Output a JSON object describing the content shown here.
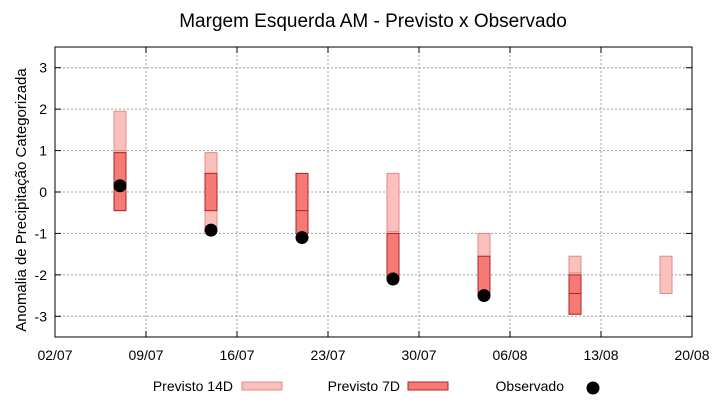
{
  "chart_data": {
    "type": "range-bar",
    "title": "Margem Esquerda AM - Previsto x Observado",
    "xlabel": "",
    "ylabel": "Anomalia de Precipitação Categorizada",
    "xlim": [
      "02/07",
      "20/08"
    ],
    "ylim": [
      -3.5,
      3.5
    ],
    "x_ticks": [
      "02/07",
      "09/07",
      "16/07",
      "23/07",
      "30/07",
      "06/08",
      "13/08",
      "20/08"
    ],
    "y_ticks": [
      3,
      2,
      1,
      0,
      -1,
      -2,
      -3
    ],
    "grid": true,
    "legend_position": "bottom",
    "series": [
      {
        "name": "Previsto 14D",
        "color": "#f9c0bc",
        "edge_color": "#e08a86",
        "data": [
          {
            "x": "07/07",
            "low": -0.45,
            "mid": 1.0,
            "high": 1.95
          },
          {
            "x": "14/07",
            "low": -0.85,
            "mid": 0.95,
            "high": 0.95
          },
          {
            "x": "21/07",
            "low": -0.45,
            "mid": -0.45,
            "high": -0.45
          },
          {
            "x": "28/07",
            "low": -1.0,
            "mid": -0.95,
            "high": 0.45
          },
          {
            "x": "04/08",
            "low": -2.45,
            "mid": -2.0,
            "high": -1.0
          },
          {
            "x": "11/08",
            "low": -2.95,
            "mid": -1.95,
            "high": -1.55
          },
          {
            "x": "18/08",
            "low": -2.45,
            "mid": -2.45,
            "high": -1.55
          }
        ]
      },
      {
        "name": "Previsto 7D",
        "color": "#f57a74",
        "edge_color": "#b0202a",
        "data": [
          {
            "x": "07/07",
            "low": -0.45,
            "mid": 0.15,
            "high": 0.95
          },
          {
            "x": "14/07",
            "low": -0.45,
            "mid": -0.45,
            "high": 0.45
          },
          {
            "x": "21/07",
            "low": -1.0,
            "mid": -0.45,
            "high": 0.45
          },
          {
            "x": "28/07",
            "low": -2.1,
            "mid": -2.1,
            "high": -1.0
          },
          {
            "x": "04/08",
            "low": -2.45,
            "mid": -2.45,
            "high": -1.55
          },
          {
            "x": "11/08",
            "low": -2.95,
            "mid": -2.45,
            "high": -2.0
          }
        ]
      },
      {
        "name": "Observado",
        "color": "#000000",
        "points": [
          {
            "x": "07/07",
            "y": 0.15
          },
          {
            "x": "14/07",
            "y": -0.92
          },
          {
            "x": "21/07",
            "y": -1.1
          },
          {
            "x": "28/07",
            "y": -2.1
          },
          {
            "x": "04/08",
            "y": -2.5
          }
        ]
      }
    ]
  }
}
